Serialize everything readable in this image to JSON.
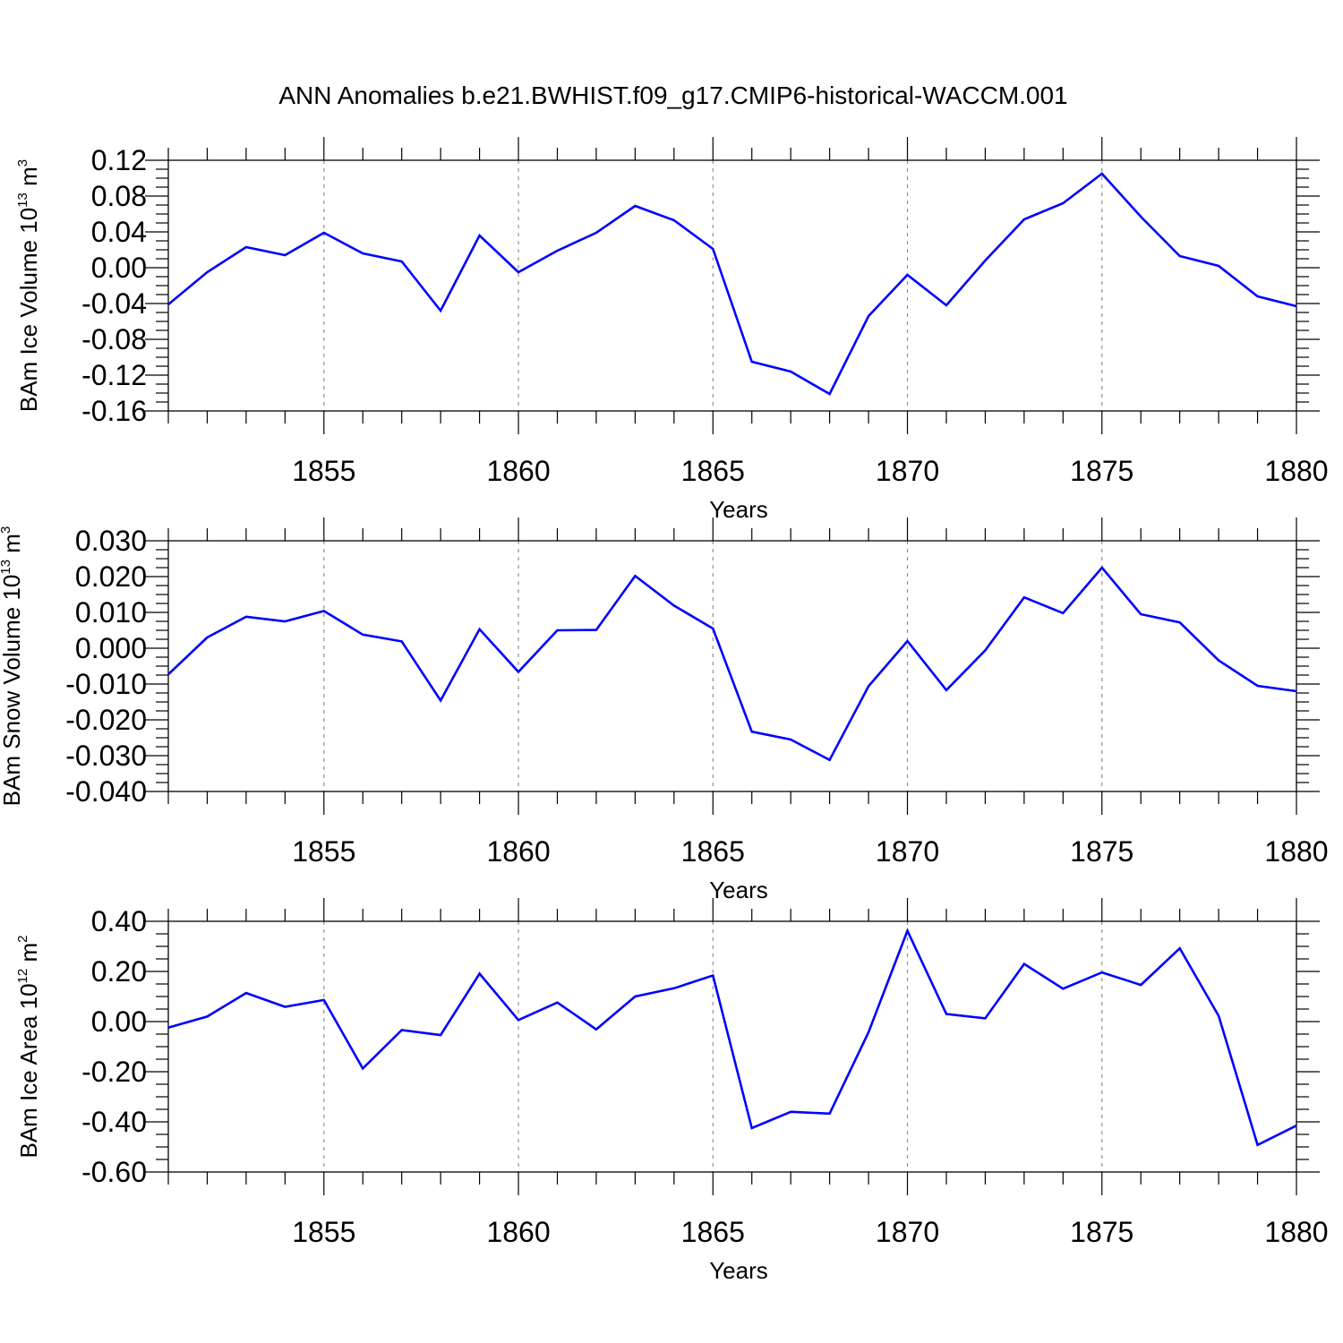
{
  "title": "ANN Anomalies b.e21.BWHIST.f09_g17.CMIP6-historical-WACCM.001",
  "colors": {
    "line": "#0000ff",
    "grid": "#888888",
    "axis": "#000000"
  },
  "chart_data": [
    {
      "type": "line",
      "ylabel": {
        "text": "BAm Ice Volume 10",
        "sup": "13",
        "unit": " m",
        "unit_sup": "3"
      },
      "xlabel": "Years",
      "xlim": [
        1851,
        1880
      ],
      "ylim": [
        -0.16,
        0.12
      ],
      "xticks": [
        1855,
        1860,
        1865,
        1870,
        1875,
        1880
      ],
      "yticks": [
        -0.16,
        -0.12,
        -0.08,
        -0.04,
        0.0,
        0.04,
        0.08,
        0.12
      ],
      "ytick_labels": [
        "-0.16",
        "-0.12",
        "-0.08",
        "-0.04",
        "0.00",
        "0.04",
        "0.08",
        "0.12"
      ],
      "grid": "vertical dashed at major x ticks",
      "series": [
        {
          "x": [
            1851,
            1852,
            1853,
            1854,
            1855,
            1856,
            1857,
            1858,
            1859,
            1860,
            1861,
            1862,
            1863,
            1864,
            1865,
            1866,
            1867,
            1868,
            1869,
            1870,
            1871,
            1872,
            1873,
            1874,
            1875,
            1876,
            1877,
            1878,
            1879,
            1880
          ],
          "values": [
            -0.041,
            -0.005,
            0.023,
            0.014,
            0.039,
            0.016,
            0.007,
            -0.048,
            0.036,
            -0.005,
            0.019,
            0.039,
            0.069,
            0.053,
            0.021,
            -0.105,
            -0.116,
            -0.141,
            -0.054,
            -0.008,
            -0.042,
            0.008,
            0.054,
            0.072,
            0.105,
            0.057,
            0.013,
            0.002,
            -0.032,
            -0.043
          ]
        }
      ]
    },
    {
      "type": "line",
      "ylabel": {
        "text": "BAm Snow Volume 10",
        "sup": "13",
        "unit": " m",
        "unit_sup": "3"
      },
      "xlabel": "Years",
      "xlim": [
        1851,
        1880
      ],
      "ylim": [
        -0.04,
        0.03
      ],
      "xticks": [
        1855,
        1860,
        1865,
        1870,
        1875,
        1880
      ],
      "yticks": [
        -0.04,
        -0.03,
        -0.02,
        -0.01,
        0.0,
        0.01,
        0.02,
        0.03
      ],
      "ytick_labels": [
        "-0.040",
        "-0.030",
        "-0.020",
        "-0.010",
        "0.000",
        "0.010",
        "0.020",
        "0.030"
      ],
      "grid": "vertical dashed at major x ticks",
      "series": [
        {
          "x": [
            1851,
            1852,
            1853,
            1854,
            1855,
            1856,
            1857,
            1858,
            1859,
            1860,
            1861,
            1862,
            1863,
            1864,
            1865,
            1866,
            1867,
            1868,
            1869,
            1870,
            1871,
            1872,
            1873,
            1874,
            1875,
            1876,
            1877,
            1878,
            1879,
            1880
          ],
          "values": [
            -0.0073,
            0.003,
            0.0088,
            0.0075,
            0.0104,
            0.0038,
            0.0019,
            -0.0146,
            0.0053,
            -0.0066,
            0.005,
            0.0051,
            0.0202,
            0.0119,
            0.0055,
            -0.0233,
            -0.0255,
            -0.0312,
            -0.0106,
            0.002,
            -0.0117,
            -0.0006,
            0.0142,
            0.0098,
            0.0225,
            0.0095,
            0.0072,
            -0.0034,
            -0.0105,
            -0.012
          ]
        }
      ]
    },
    {
      "type": "line",
      "ylabel": {
        "text": "BAm Ice Area 10",
        "sup": "12",
        "unit": " m",
        "unit_sup": "2"
      },
      "xlabel": "Years",
      "xlim": [
        1851,
        1880
      ],
      "ylim": [
        -0.6,
        0.4
      ],
      "xticks": [
        1855,
        1860,
        1865,
        1870,
        1875,
        1880
      ],
      "yticks": [
        -0.6,
        -0.4,
        -0.2,
        0.0,
        0.2,
        0.4
      ],
      "ytick_labels": [
        "-0.60",
        "-0.40",
        "-0.20",
        "0.00",
        "0.20",
        "0.40"
      ],
      "grid": "vertical dashed at major x ticks",
      "series": [
        {
          "x": [
            1851,
            1852,
            1853,
            1854,
            1855,
            1856,
            1857,
            1858,
            1859,
            1860,
            1861,
            1862,
            1863,
            1864,
            1865,
            1866,
            1867,
            1868,
            1869,
            1870,
            1871,
            1872,
            1873,
            1874,
            1875,
            1876,
            1877,
            1878,
            1879,
            1880
          ],
          "values": [
            -0.024,
            0.02,
            0.114,
            0.059,
            0.086,
            -0.187,
            -0.034,
            -0.054,
            0.191,
            0.006,
            0.076,
            -0.031,
            0.1,
            0.133,
            0.184,
            -0.425,
            -0.36,
            -0.367,
            -0.042,
            0.362,
            0.03,
            0.013,
            0.23,
            0.131,
            0.196,
            0.146,
            0.292,
            0.023,
            -0.492,
            -0.415
          ]
        }
      ]
    }
  ]
}
